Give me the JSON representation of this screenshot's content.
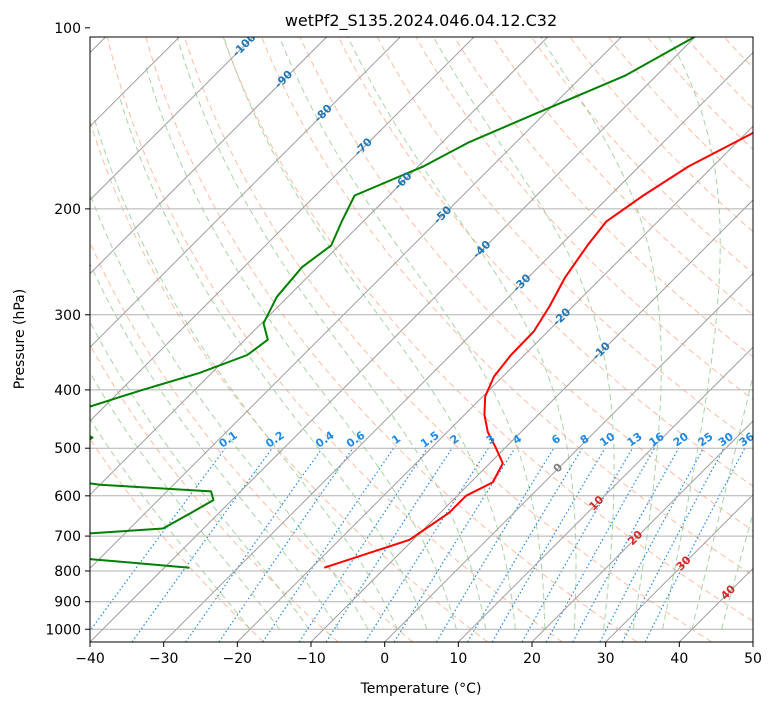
{
  "chart_data": {
    "type": "skew-t",
    "title": "wetPf2_S135.2024.046.04.12.C32",
    "xlabel": "Temperature (°C)",
    "ylabel": "Pressure (hPa)",
    "xlim": [
      -40,
      50
    ],
    "ylim_hpa": [
      1050,
      100
    ],
    "pressure_scale": "log",
    "grid": true,
    "x_ticks": [
      -40,
      -30,
      -20,
      -10,
      0,
      10,
      20,
      30,
      40,
      50
    ],
    "x_tick_labels": [
      "−40",
      "−30",
      "−20",
      "−10",
      "0",
      "10",
      "20",
      "30",
      "40",
      "50"
    ],
    "y_ticks": [
      100,
      200,
      300,
      400,
      500,
      600,
      700,
      800,
      900,
      1000
    ],
    "y_tick_labels": [
      "100",
      "200",
      "300",
      "400",
      "500",
      "600",
      "700",
      "800",
      "900",
      "1000"
    ],
    "series": [
      {
        "color": "#ff0000",
        "points": [
          [
            100,
            -19.7
          ],
          [
            115,
            -18.5
          ],
          [
            130,
            -17.1
          ],
          [
            150,
            -19.2
          ],
          [
            170,
            -23.3
          ],
          [
            190,
            -25.5
          ],
          [
            210,
            -27.0
          ],
          [
            230,
            -26.3
          ],
          [
            260,
            -25.0
          ],
          [
            290,
            -23.2
          ],
          [
            320,
            -21.9
          ],
          [
            350,
            -21.8
          ],
          [
            380,
            -21.2
          ],
          [
            410,
            -19.7
          ],
          [
            440,
            -17.3
          ],
          [
            470,
            -14.5
          ],
          [
            500,
            -11.2
          ],
          [
            530,
            -8.2
          ],
          [
            570,
            -7.0
          ],
          [
            600,
            -8.8
          ],
          [
            640,
            -8.8
          ],
          [
            680,
            -9.8
          ],
          [
            710,
            -10.5
          ],
          [
            740,
            -13.5
          ],
          [
            790,
            -18.3
          ]
        ]
      },
      {
        "color": "#008000",
        "points": [
          [
            100,
            -39.1
          ],
          [
            120,
            -44.2
          ],
          [
            140,
            -51.6
          ],
          [
            155,
            -56.4
          ],
          [
            170,
            -59.3
          ],
          [
            190,
            -64.7
          ],
          [
            210,
            -62.9
          ],
          [
            230,
            -61.1
          ],
          [
            250,
            -62.1
          ],
          [
            280,
            -61.5
          ],
          [
            310,
            -59.7
          ],
          [
            330,
            -56.9
          ],
          [
            350,
            -57.6
          ],
          [
            375,
            -61.7
          ],
          [
            400,
            -67.1
          ],
          [
            430,
            -72.6
          ],
          [
            460,
            -72.5
          ],
          [
            480,
            -67.4
          ],
          [
            500,
            -68.2
          ],
          [
            520,
            -71.5
          ],
          [
            545,
            -76.6
          ],
          [
            575,
            -60.0
          ],
          [
            590,
            -44.0
          ],
          [
            610,
            -42.5
          ],
          [
            640,
            -43.8
          ],
          [
            680,
            -45.5
          ],
          [
            700,
            -60.0
          ],
          [
            720,
            -75.0
          ],
          [
            745,
            -63.0
          ],
          [
            770,
            -48.0
          ],
          [
            790,
            -36.6
          ]
        ]
      }
    ],
    "isotherm_labels": [
      "-100",
      "-90",
      "-80",
      "-70",
      "-60",
      "-50",
      "-40",
      "-30",
      "-20",
      "-10",
      "0",
      "10",
      "20",
      "30",
      "40"
    ],
    "isotherm_label_values": [
      -100,
      -90,
      -80,
      -70,
      -60,
      -50,
      -40,
      -30,
      -20,
      -10,
      0,
      10,
      20,
      30,
      40
    ],
    "mixing_ratio_labels": [
      "0.1",
      "0.2",
      "0.4",
      "0.6",
      "1",
      "1.5",
      "2",
      "3",
      "4",
      "6",
      "8",
      "10",
      "13",
      "16",
      "20",
      "25",
      "30",
      "36"
    ],
    "mixing_ratio_values": [
      0.1,
      0.2,
      0.4,
      0.6,
      1,
      1.5,
      2,
      3,
      4,
      6,
      8,
      10,
      13,
      16,
      20,
      25,
      30,
      36
    ],
    "colors": {
      "isotherm": "#9e9e9e",
      "isobar": "#b0b0b0",
      "dry_adiabat": "#ffa07a",
      "moist_adiabat": "#90c990",
      "mixing_ratio": "#1e88e5",
      "label_cold": "#1f77b4",
      "label_zero": "#808080",
      "label_warm": "#d62728",
      "temperature": "#ff0000",
      "dewpoint": "#008000"
    }
  }
}
